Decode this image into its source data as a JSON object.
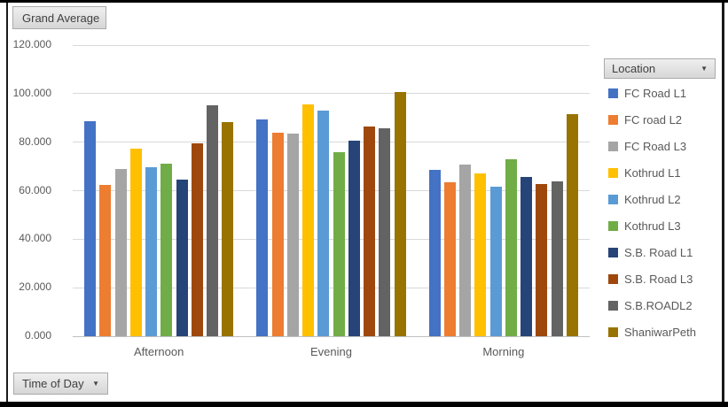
{
  "filter_buttons": {
    "grand_average": "Grand Average",
    "time_of_day": "Time of Day",
    "location": "Location"
  },
  "icons": {
    "dropdown_arrow": "▼"
  },
  "chart_data": {
    "type": "bar",
    "title": "",
    "categories": [
      "Afternoon",
      "Evening",
      "Morning"
    ],
    "series": [
      {
        "name": "FC Road L1",
        "color": "#4472C4",
        "values": [
          88.8,
          89.3,
          68.4
        ]
      },
      {
        "name": "FC road L2",
        "color": "#ED7D31",
        "values": [
          62.3,
          84.0,
          63.6
        ]
      },
      {
        "name": "FC Road L3",
        "color": "#A5A5A5",
        "values": [
          69.1,
          83.5,
          70.7
        ]
      },
      {
        "name": "Kothrud L1",
        "color": "#FFC000",
        "values": [
          77.4,
          95.5,
          67.0
        ]
      },
      {
        "name": "Kothrud L2",
        "color": "#5B9BD5",
        "values": [
          69.5,
          93.1,
          61.5
        ]
      },
      {
        "name": "Kothrud L3",
        "color": "#70AD47",
        "values": [
          71.2,
          75.7,
          73.0
        ]
      },
      {
        "name": "S.B. Road L1",
        "color": "#264478",
        "values": [
          64.6,
          80.6,
          65.5
        ]
      },
      {
        "name": "S.B. Road L3",
        "color": "#9E480E",
        "values": [
          79.4,
          86.4,
          62.8
        ]
      },
      {
        "name": "S.B.ROADL2",
        "color": "#636363",
        "values": [
          95.2,
          85.8,
          64.0
        ]
      },
      {
        "name": "ShaniwarPeth",
        "color": "#997300",
        "values": [
          88.1,
          100.5,
          91.5
        ]
      }
    ],
    "ylim": [
      0,
      120
    ],
    "y_ticks": [
      0,
      20,
      40,
      60,
      80,
      100,
      120
    ],
    "y_tick_labels": [
      "0.000",
      "20.000",
      "40.000",
      "60.000",
      "80.000",
      "100.000",
      "120.000"
    ],
    "grid": true,
    "legend_position": "right",
    "legend_title": "Location",
    "axis_field": "Time of Day",
    "value_field": "Grand Average"
  },
  "colors": {
    "grid": "#D9D9D9",
    "axis_line": "#BFBFBF",
    "tick_text": "#595959",
    "frame": "#000000"
  }
}
